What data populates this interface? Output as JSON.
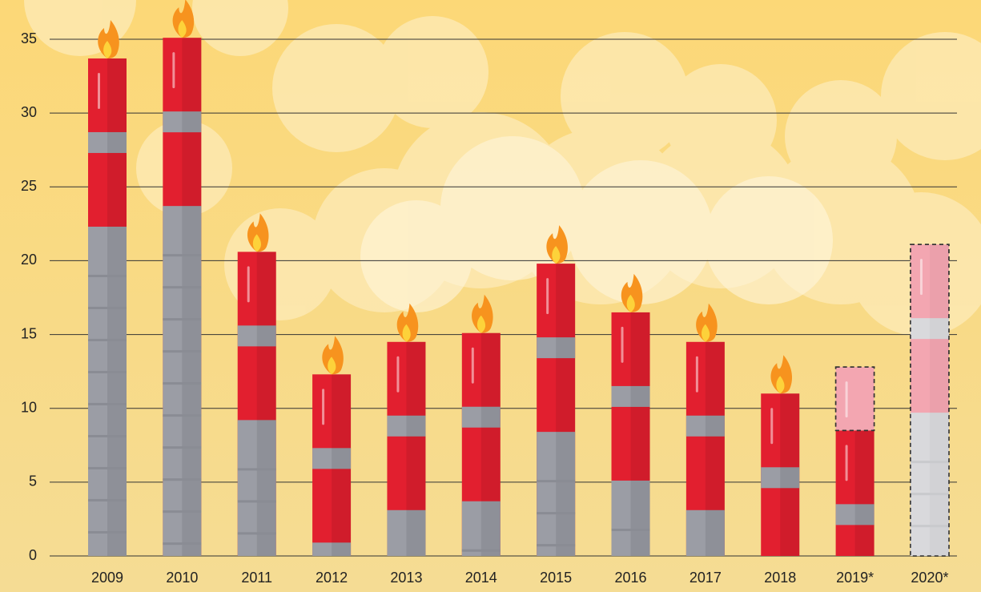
{
  "chart_data": {
    "type": "bar",
    "stacked": true,
    "categories": [
      "2009",
      "2010",
      "2011",
      "2012",
      "2013",
      "2014",
      "2015",
      "2016",
      "2017",
      "2018",
      "2019*",
      "2020*"
    ],
    "series": [
      {
        "color": "#e21f2f",
        "values": [
          33.7,
          35.1,
          20.6,
          12.3,
          14.5,
          15.1,
          19.8,
          16.5,
          14.5,
          11.0,
          8.5,
          null
        ]
      },
      {
        "color": "#f3a6b1",
        "values": [
          null,
          null,
          null,
          null,
          null,
          null,
          null,
          null,
          null,
          null,
          4.3,
          21.1
        ]
      }
    ],
    "ylim": [
      0,
      35
    ],
    "yticks": [
      0,
      5,
      10,
      15,
      20,
      25,
      30,
      35
    ],
    "grid": true
  }
}
